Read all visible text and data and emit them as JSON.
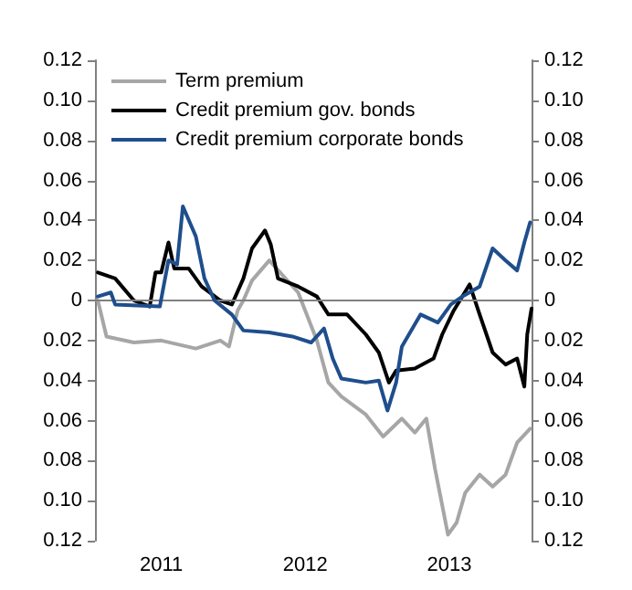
{
  "chart_data": {
    "type": "line",
    "xlim": [
      2011.04,
      2014.07
    ],
    "xticks": [
      {
        "value": 2011.5,
        "label": "2011"
      },
      {
        "value": 2012.5,
        "label": "2012"
      },
      {
        "value": 2013.5,
        "label": "2013"
      }
    ],
    "ylim": [
      -0.12,
      0.12
    ],
    "yticks": [
      {
        "value": -0.12,
        "label": "0.12"
      },
      {
        "value": -0.1,
        "label": "0.10"
      },
      {
        "value": -0.08,
        "label": "0.08"
      },
      {
        "value": -0.06,
        "label": "0.06"
      },
      {
        "value": -0.04,
        "label": "0.04"
      },
      {
        "value": -0.02,
        "label": "0.02"
      },
      0,
      0.02,
      0.04,
      0.06,
      0.08,
      {
        "value": 0.1,
        "label": "0.10"
      },
      0.12
    ],
    "y2lim": [
      -0.12,
      0.12
    ],
    "y2ticks": [
      {
        "value": -0.12,
        "label": "0.12"
      },
      {
        "value": -0.1,
        "label": "0.10"
      },
      {
        "value": -0.08,
        "label": "0.08"
      },
      {
        "value": -0.06,
        "label": "0.06"
      },
      {
        "value": -0.04,
        "label": "0.04"
      },
      {
        "value": -0.02,
        "label": "0.02"
      },
      0,
      0.02,
      0.04,
      0.06,
      0.08,
      {
        "value": 0.1,
        "label": "0.10"
      },
      0.12
    ],
    "grid": false,
    "legend": "top left",
    "marker": "none",
    "line_style": "solid",
    "ref_lines": [
      {
        "axis": "y",
        "value": 0,
        "color": "#808080"
      }
    ],
    "series": [
      {
        "name": "Term premium",
        "color": "#a6a6a6",
        "x": [
          2011.06,
          2011.12,
          2011.31,
          2011.5,
          2011.74,
          2011.91,
          2011.97,
          2012.03,
          2012.07,
          2012.13,
          2012.25,
          2012.45,
          2012.58,
          2012.66,
          2012.75,
          2012.92,
          2013.04,
          2013.17,
          2013.26,
          2013.34,
          2013.4,
          2013.49,
          2013.55,
          2013.61,
          2013.71,
          2013.8,
          2013.89,
          2013.97,
          2014.06
        ],
        "values": [
          0.0,
          -0.018,
          -0.021,
          -0.02,
          -0.024,
          -0.02,
          -0.023,
          -0.005,
          0.0,
          0.01,
          0.02,
          0.004,
          -0.02,
          -0.041,
          -0.048,
          -0.057,
          -0.068,
          -0.059,
          -0.066,
          -0.059,
          -0.084,
          -0.117,
          -0.111,
          -0.096,
          -0.087,
          -0.093,
          -0.087,
          -0.071,
          -0.064
        ]
      },
      {
        "name": "Credit premium gov. bonds",
        "color": "#000000",
        "x": [
          2011.06,
          2011.18,
          2011.31,
          2011.42,
          2011.46,
          2011.5,
          2011.55,
          2011.59,
          2011.69,
          2011.78,
          2011.91,
          2011.99,
          2012.07,
          2012.13,
          2012.22,
          2012.26,
          2012.31,
          2012.45,
          2012.58,
          2012.66,
          2012.79,
          2012.92,
          2013.01,
          2013.08,
          2013.13,
          2013.26,
          2013.39,
          2013.45,
          2013.53,
          2013.64,
          2013.71,
          2013.8,
          2013.89,
          2013.97,
          2014.02,
          2014.04,
          2014.07
        ],
        "values": [
          0.014,
          0.011,
          0.0,
          -0.003,
          0.014,
          0.014,
          0.029,
          0.016,
          0.016,
          0.007,
          0.0,
          -0.002,
          0.011,
          0.026,
          0.035,
          0.028,
          0.011,
          0.007,
          0.002,
          -0.007,
          -0.007,
          -0.017,
          -0.026,
          -0.041,
          -0.035,
          -0.034,
          -0.029,
          -0.017,
          -0.005,
          0.008,
          -0.007,
          -0.026,
          -0.032,
          -0.029,
          -0.043,
          -0.017,
          -0.004
        ]
      },
      {
        "name": "Credit premium corporate bonds",
        "color": "#1f4e8c",
        "x": [
          2011.06,
          2011.15,
          2011.18,
          2011.49,
          2011.55,
          2011.61,
          2011.65,
          2011.74,
          2011.8,
          2011.87,
          2011.99,
          2012.07,
          2012.25,
          2012.41,
          2012.54,
          2012.63,
          2012.69,
          2012.75,
          2012.92,
          2013.01,
          2013.07,
          2013.13,
          2013.17,
          2013.3,
          2013.42,
          2013.51,
          2013.59,
          2013.71,
          2013.8,
          2013.89,
          2013.97,
          2014.02,
          2014.06
        ],
        "values": [
          0.002,
          0.004,
          -0.002,
          -0.003,
          0.02,
          0.018,
          0.047,
          0.032,
          0.011,
          0.0,
          -0.007,
          -0.015,
          -0.016,
          -0.018,
          -0.021,
          -0.014,
          -0.029,
          -0.039,
          -0.041,
          -0.04,
          -0.055,
          -0.041,
          -0.023,
          -0.007,
          -0.011,
          -0.002,
          0.002,
          0.007,
          0.026,
          0.02,
          0.015,
          0.029,
          0.039
        ]
      }
    ]
  }
}
